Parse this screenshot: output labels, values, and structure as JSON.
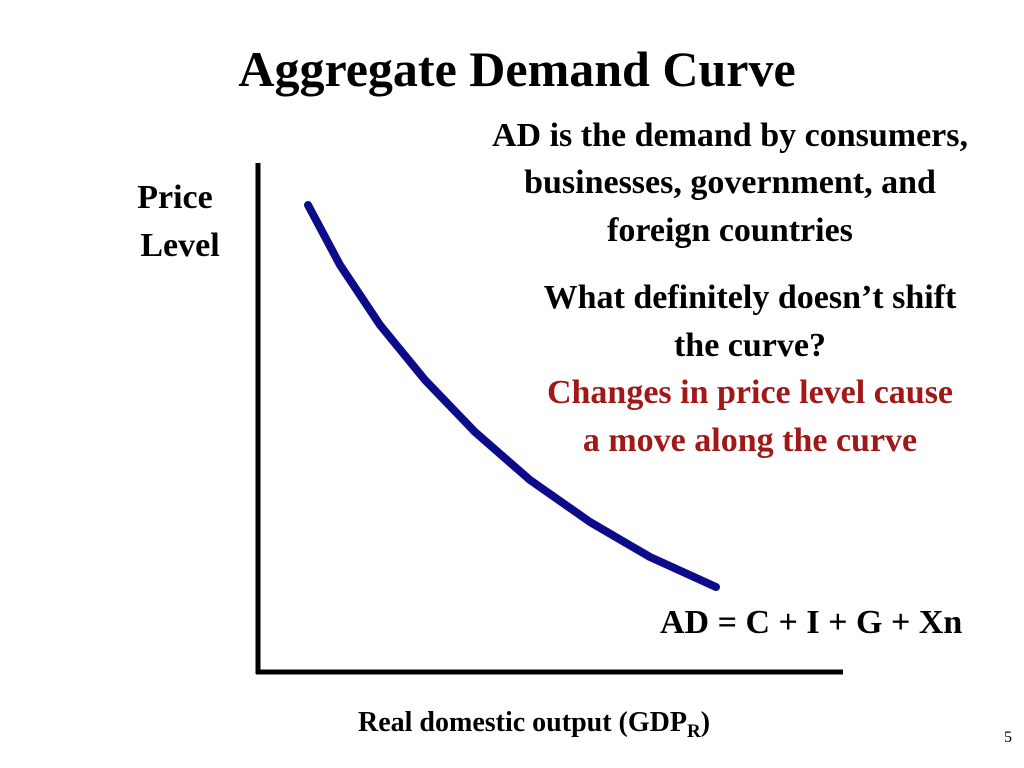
{
  "title": "Aggregate Demand Curve",
  "description": [
    "AD is the demand by consumers,",
    "businesses, government, and",
    "foreign countries"
  ],
  "question": [
    "What definitely doesn’t shift",
    "the curve?"
  ],
  "answer": [
    "Changes in price level cause",
    "a move along the curve"
  ],
  "y_label": [
    "Price",
    "Level"
  ],
  "curve_label": "AD = C + I + G + Xn",
  "x_label": {
    "text": "Real domestic output (GDP",
    "subscript": "R",
    "close": ")"
  },
  "page_number": "5"
}
